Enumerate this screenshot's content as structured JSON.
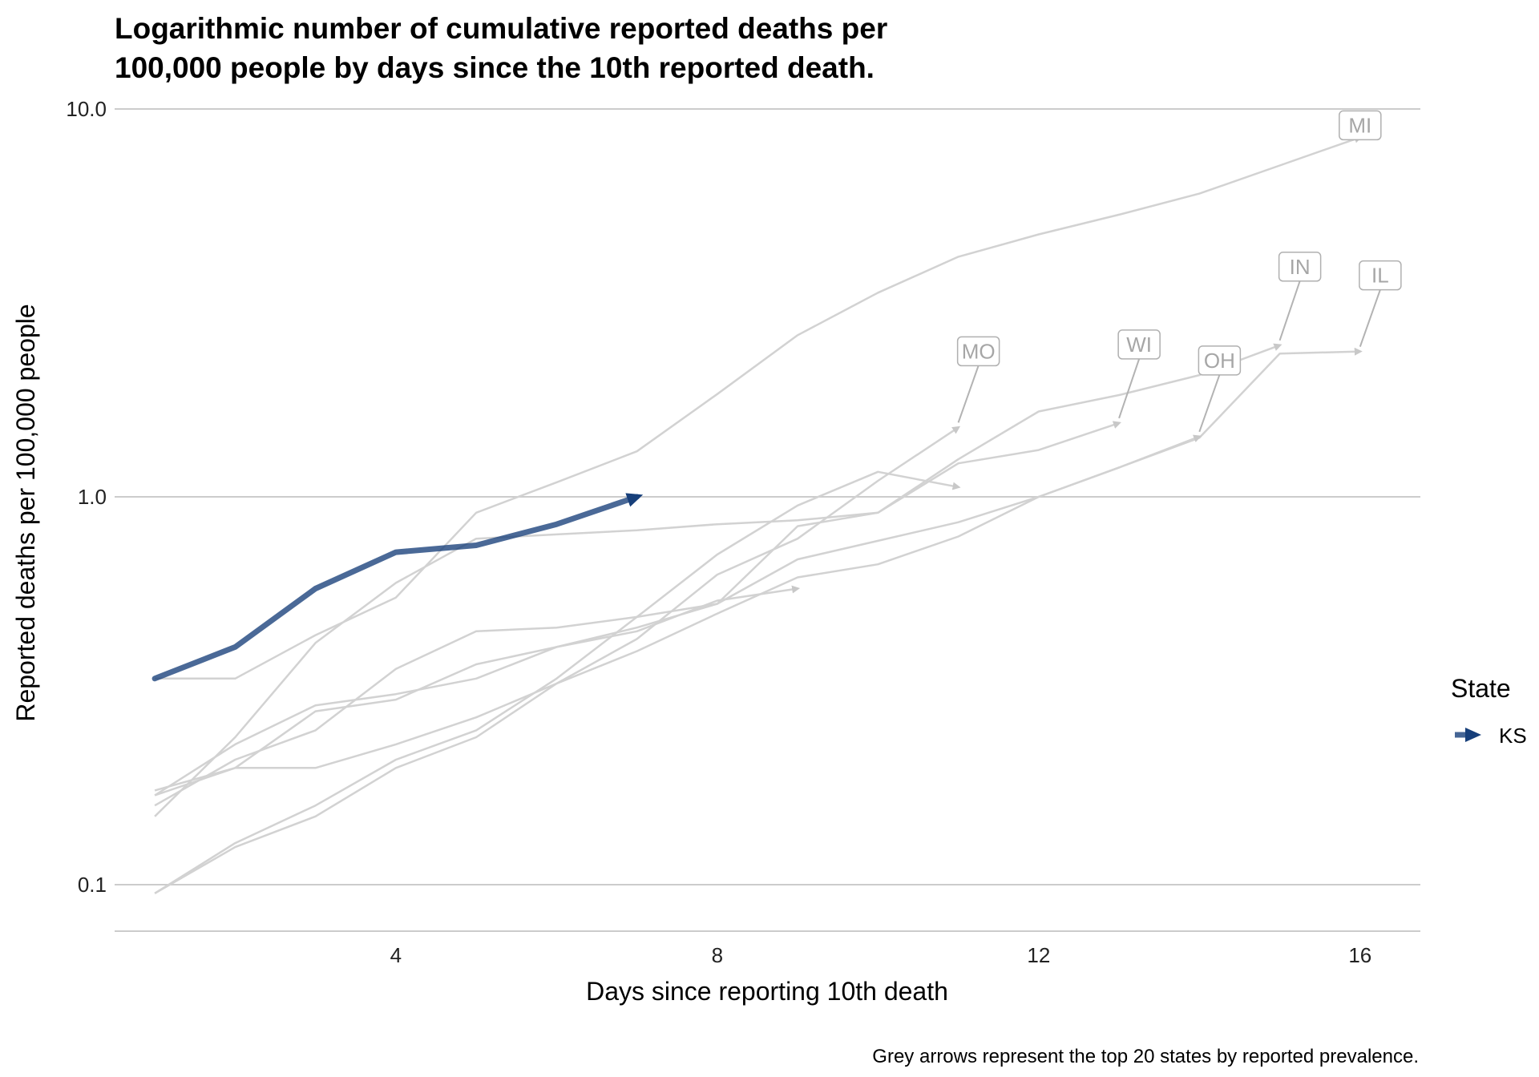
{
  "chart_data": {
    "type": "line",
    "title": "Logarithmic number of cumulative reported deaths per 100,000 people by days since the 10th reported death.",
    "title_lines": [
      "Logarithmic number of cumulative reported deaths per",
      "100,000 people by days since the 10th reported death."
    ],
    "xlabel": "Days since reporting 10th death",
    "ylabel": "Reported deaths per 100,000 people",
    "caption": "Grey arrows represent the top 20 states by reported prevalence.",
    "y_scale": "log10",
    "xlim": [
      0.5,
      16.75
    ],
    "ylim": [
      0.076,
      10.0
    ],
    "x_ticks": [
      4,
      8,
      12,
      16
    ],
    "x_tick_labels": [
      "4",
      "8",
      "12",
      "16"
    ],
    "y_ticks": [
      0.1,
      1.0,
      10.0
    ],
    "y_tick_labels": [
      "0.1",
      "1.0",
      "10.0"
    ],
    "grid": "horizontal major",
    "legend": {
      "title": "State",
      "placement": "right",
      "entries": [
        "KS"
      ]
    },
    "highlight_color": "#173f7a",
    "background_color": "#cccccc",
    "series": [
      {
        "name": "KS",
        "highlight": true,
        "x": [
          1,
          2,
          3,
          4,
          5,
          6,
          7
        ],
        "y": [
          0.34,
          0.41,
          0.58,
          0.72,
          0.75,
          0.85,
          1.0
        ]
      },
      {
        "name": "MI",
        "label": "MI",
        "x": [
          1,
          2,
          3,
          4,
          5,
          6,
          7,
          8,
          9,
          10,
          11,
          12,
          13,
          14,
          15,
          16
        ],
        "y": [
          0.34,
          0.34,
          0.44,
          0.55,
          0.91,
          1.09,
          1.31,
          1.84,
          2.61,
          3.36,
          4.16,
          4.75,
          5.34,
          6.05,
          7.15,
          8.45
        ]
      },
      {
        "name": "IN",
        "label": "IN",
        "x": [
          1,
          2,
          3,
          4,
          5,
          6,
          7,
          8,
          9,
          10,
          11,
          12,
          13,
          14,
          15
        ],
        "y": [
          0.15,
          0.24,
          0.42,
          0.6,
          0.78,
          0.8,
          0.82,
          0.85,
          0.87,
          0.91,
          1.25,
          1.66,
          1.83,
          2.06,
          2.46
        ]
      },
      {
        "name": "IL",
        "label": "IL",
        "x": [
          1,
          2,
          3,
          4,
          5,
          6,
          7,
          8,
          9,
          10,
          11,
          12,
          13,
          14,
          15,
          16
        ],
        "y": [
          0.17,
          0.23,
          0.29,
          0.31,
          0.34,
          0.41,
          0.46,
          0.53,
          0.69,
          0.77,
          0.86,
          1.0,
          1.19,
          1.42,
          2.34,
          2.37
        ]
      },
      {
        "name": "OH",
        "label": "OH",
        "x": [
          1,
          2,
          3,
          4,
          5,
          6,
          7,
          8,
          9,
          10,
          11,
          12,
          13,
          14
        ],
        "y": [
          0.175,
          0.2,
          0.2,
          0.23,
          0.27,
          0.33,
          0.4,
          0.5,
          0.62,
          0.67,
          0.79,
          1.0,
          1.19,
          1.43
        ]
      },
      {
        "name": "WI",
        "label": "WI",
        "x": [
          1,
          2,
          3,
          4,
          5,
          6,
          7,
          8,
          9,
          10,
          11,
          12,
          13
        ],
        "y": [
          0.16,
          0.21,
          0.25,
          0.36,
          0.45,
          0.46,
          0.49,
          0.53,
          0.84,
          0.91,
          1.22,
          1.32,
          1.55
        ]
      },
      {
        "name": "MO",
        "label": "MO",
        "x": [
          1,
          2,
          3,
          4,
          5,
          6,
          7,
          8,
          9,
          10,
          11
        ],
        "y": [
          0.095,
          0.125,
          0.15,
          0.2,
          0.24,
          0.33,
          0.43,
          0.63,
          0.78,
          1.1,
          1.51
        ]
      },
      {
        "name": "",
        "x": [
          1,
          2,
          3,
          4,
          5,
          6,
          7,
          8,
          9,
          10,
          11
        ],
        "y": [
          0.095,
          0.128,
          0.16,
          0.21,
          0.25,
          0.34,
          0.49,
          0.71,
          0.95,
          1.16,
          1.06
        ]
      },
      {
        "name": "",
        "x": [
          1,
          2,
          3,
          4,
          5,
          6,
          7,
          8,
          9
        ],
        "y": [
          0.17,
          0.2,
          0.28,
          0.3,
          0.37,
          0.41,
          0.45,
          0.54,
          0.58
        ]
      }
    ]
  }
}
